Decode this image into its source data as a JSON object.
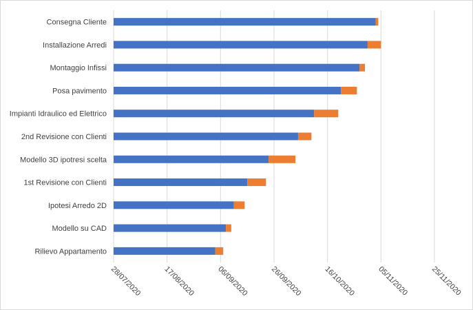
{
  "chart_data": {
    "type": "bar",
    "orientation": "horizontal",
    "stacked": true,
    "title": "",
    "xlabel": "",
    "ylabel": "",
    "categories": [
      "Consegna Cliente",
      "Installazione Arredi",
      "Montaggio Infissi",
      "Posa pavimento",
      "Impianti Idraulico ed Elettrico",
      "2nd Revisione con Clienti",
      "Modello 3D ipotresi scelta",
      "1st Revisione con Clienti",
      "Ipotesi Arredo 2D",
      "Modello su CAD",
      "Rilievo Appartamento"
    ],
    "series": [
      {
        "color": "#4472c4",
        "values": [
          "2020-11-03",
          "2020-10-31",
          "2020-10-28",
          "2020-10-21",
          "2020-10-11",
          "2020-10-05",
          "2020-09-24",
          "2020-09-16",
          "2020-09-11",
          "2020-09-08",
          "2020-09-04"
        ]
      },
      {
        "color": "#ed7d31",
        "duration_days": [
          1,
          5,
          2,
          6,
          9,
          5,
          10,
          7,
          4,
          2,
          3
        ]
      }
    ],
    "x_axis": {
      "type": "date",
      "min": "2020-07-28",
      "max": "2020-11-25",
      "tick_labels": [
        "28/07/2020",
        "17/08/2020",
        "06/09/2020",
        "26/09/2020",
        "16/10/2020",
        "05/11/2020",
        "25/11/2020"
      ],
      "tick_label_rotation": 45
    },
    "grid": {
      "vertical": true,
      "horizontal": false
    },
    "legend": "none"
  }
}
